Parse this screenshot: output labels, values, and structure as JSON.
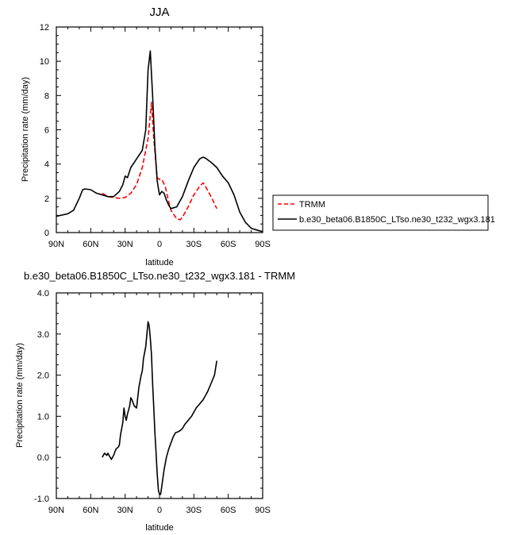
{
  "chart_data": [
    {
      "type": "line",
      "title": "JJA",
      "xlabel": "latitude",
      "ylabel": "Precipitation rate (mm/day)",
      "xlim": [
        90,
        -90
      ],
      "ylim": [
        0,
        12
      ],
      "x_ticks": [
        90,
        60,
        30,
        0,
        -30,
        -60,
        -90
      ],
      "x_tick_labels": [
        "90N",
        "60N",
        "30N",
        "0",
        "30S",
        "60S",
        "90S"
      ],
      "y_ticks": [
        0,
        2,
        4,
        6,
        8,
        10,
        12
      ],
      "y_tick_labels": [
        "0",
        "2",
        "4",
        "6",
        "8",
        "10",
        "12"
      ],
      "grid": false,
      "legend_position": "right",
      "series": [
        {
          "name": "TRMM",
          "color": "#ff0000",
          "dash": "dashed",
          "x": [
            50,
            45,
            40,
            35,
            30,
            25,
            20,
            15,
            10,
            7,
            5,
            2,
            0,
            -2,
            -5,
            -8,
            -10,
            -15,
            -18,
            -20,
            -25,
            -30,
            -35,
            -38,
            -40,
            -45,
            -50
          ],
          "y": [
            2.3,
            2.1,
            2.05,
            2.0,
            2.05,
            2.3,
            2.8,
            3.8,
            5.5,
            7.6,
            5.5,
            3.2,
            3.1,
            3.1,
            2.7,
            1.8,
            1.3,
            0.8,
            0.75,
            0.9,
            1.5,
            2.2,
            2.7,
            2.9,
            2.7,
            2.1,
            1.4
          ]
        },
        {
          "name": "b.e30_beta06.B1850C_LTso.ne30_t232_wgx3.181",
          "color": "#000000",
          "dash": "solid",
          "x": [
            90,
            80,
            75,
            70,
            67,
            65,
            60,
            55,
            50,
            45,
            40,
            35,
            32,
            30,
            28,
            25,
            20,
            15,
            12,
            10,
            8,
            6,
            4,
            2,
            0,
            -2,
            -4,
            -6,
            -8,
            -10,
            -15,
            -20,
            -25,
            -30,
            -35,
            -38,
            -40,
            -45,
            -50,
            -55,
            -60,
            -65,
            -70,
            -75,
            -80,
            -85,
            -90
          ],
          "y": [
            0.95,
            1.1,
            1.3,
            2.0,
            2.5,
            2.55,
            2.5,
            2.3,
            2.2,
            2.1,
            2.1,
            2.4,
            2.8,
            3.3,
            3.2,
            3.8,
            4.3,
            4.8,
            6.0,
            9.5,
            10.6,
            8.0,
            5.0,
            3.0,
            2.2,
            2.4,
            2.3,
            1.9,
            1.6,
            1.4,
            1.5,
            2.1,
            3.0,
            3.8,
            4.3,
            4.4,
            4.35,
            4.1,
            3.8,
            3.3,
            2.9,
            2.2,
            1.2,
            0.6,
            0.25,
            0.15,
            0.05
          ]
        }
      ]
    },
    {
      "type": "line",
      "title": "b.e30_beta06.B1850C_LTso.ne30_t232_wgx3.181 - TRMM",
      "xlabel": "latitude",
      "ylabel": "Precipitation rate (mm/day)",
      "xlim": [
        90,
        -90
      ],
      "ylim": [
        -1,
        4
      ],
      "x_ticks": [
        90,
        60,
        30,
        0,
        -30,
        -60,
        -90
      ],
      "x_tick_labels": [
        "90N",
        "60N",
        "30N",
        "0",
        "30S",
        "60S",
        "90S"
      ],
      "y_ticks": [
        -1,
        0,
        1,
        2,
        3,
        4
      ],
      "y_tick_labels": [
        "-1.0",
        "0.0",
        "1.0",
        "2.0",
        "3.0",
        "4.0"
      ],
      "grid": false,
      "series": [
        {
          "color": "#000000",
          "dash": "solid",
          "x": [
            50,
            48,
            46,
            45,
            44,
            43,
            42,
            40,
            38,
            36,
            35,
            34,
            32,
            31,
            30,
            29,
            28,
            26,
            25,
            24,
            22,
            20,
            18,
            16,
            15,
            14,
            12,
            10,
            9,
            8,
            7,
            6,
            5,
            4,
            3,
            2,
            1,
            0,
            -1,
            -2,
            -4,
            -6,
            -8,
            -10,
            -12,
            -14,
            -16,
            -18,
            -20,
            -22,
            -25,
            -28,
            -30,
            -32,
            -35,
            -38,
            -40,
            -42,
            -45,
            -48,
            -50
          ],
          "y": [
            0.0,
            0.1,
            0.05,
            0.1,
            0.05,
            0.0,
            -0.05,
            0.05,
            0.2,
            0.25,
            0.3,
            0.55,
            0.85,
            1.2,
            1.0,
            0.9,
            1.05,
            1.25,
            1.45,
            1.4,
            1.25,
            1.2,
            1.7,
            2.0,
            2.1,
            2.4,
            2.7,
            3.3,
            3.2,
            2.9,
            2.5,
            1.8,
            1.2,
            0.6,
            0.1,
            -0.4,
            -0.8,
            -0.9,
            -0.9,
            -0.7,
            -0.3,
            0.0,
            0.2,
            0.35,
            0.5,
            0.6,
            0.62,
            0.65,
            0.7,
            0.8,
            0.9,
            1.0,
            1.1,
            1.2,
            1.3,
            1.4,
            1.5,
            1.6,
            1.8,
            2.0,
            2.35
          ]
        }
      ]
    }
  ]
}
